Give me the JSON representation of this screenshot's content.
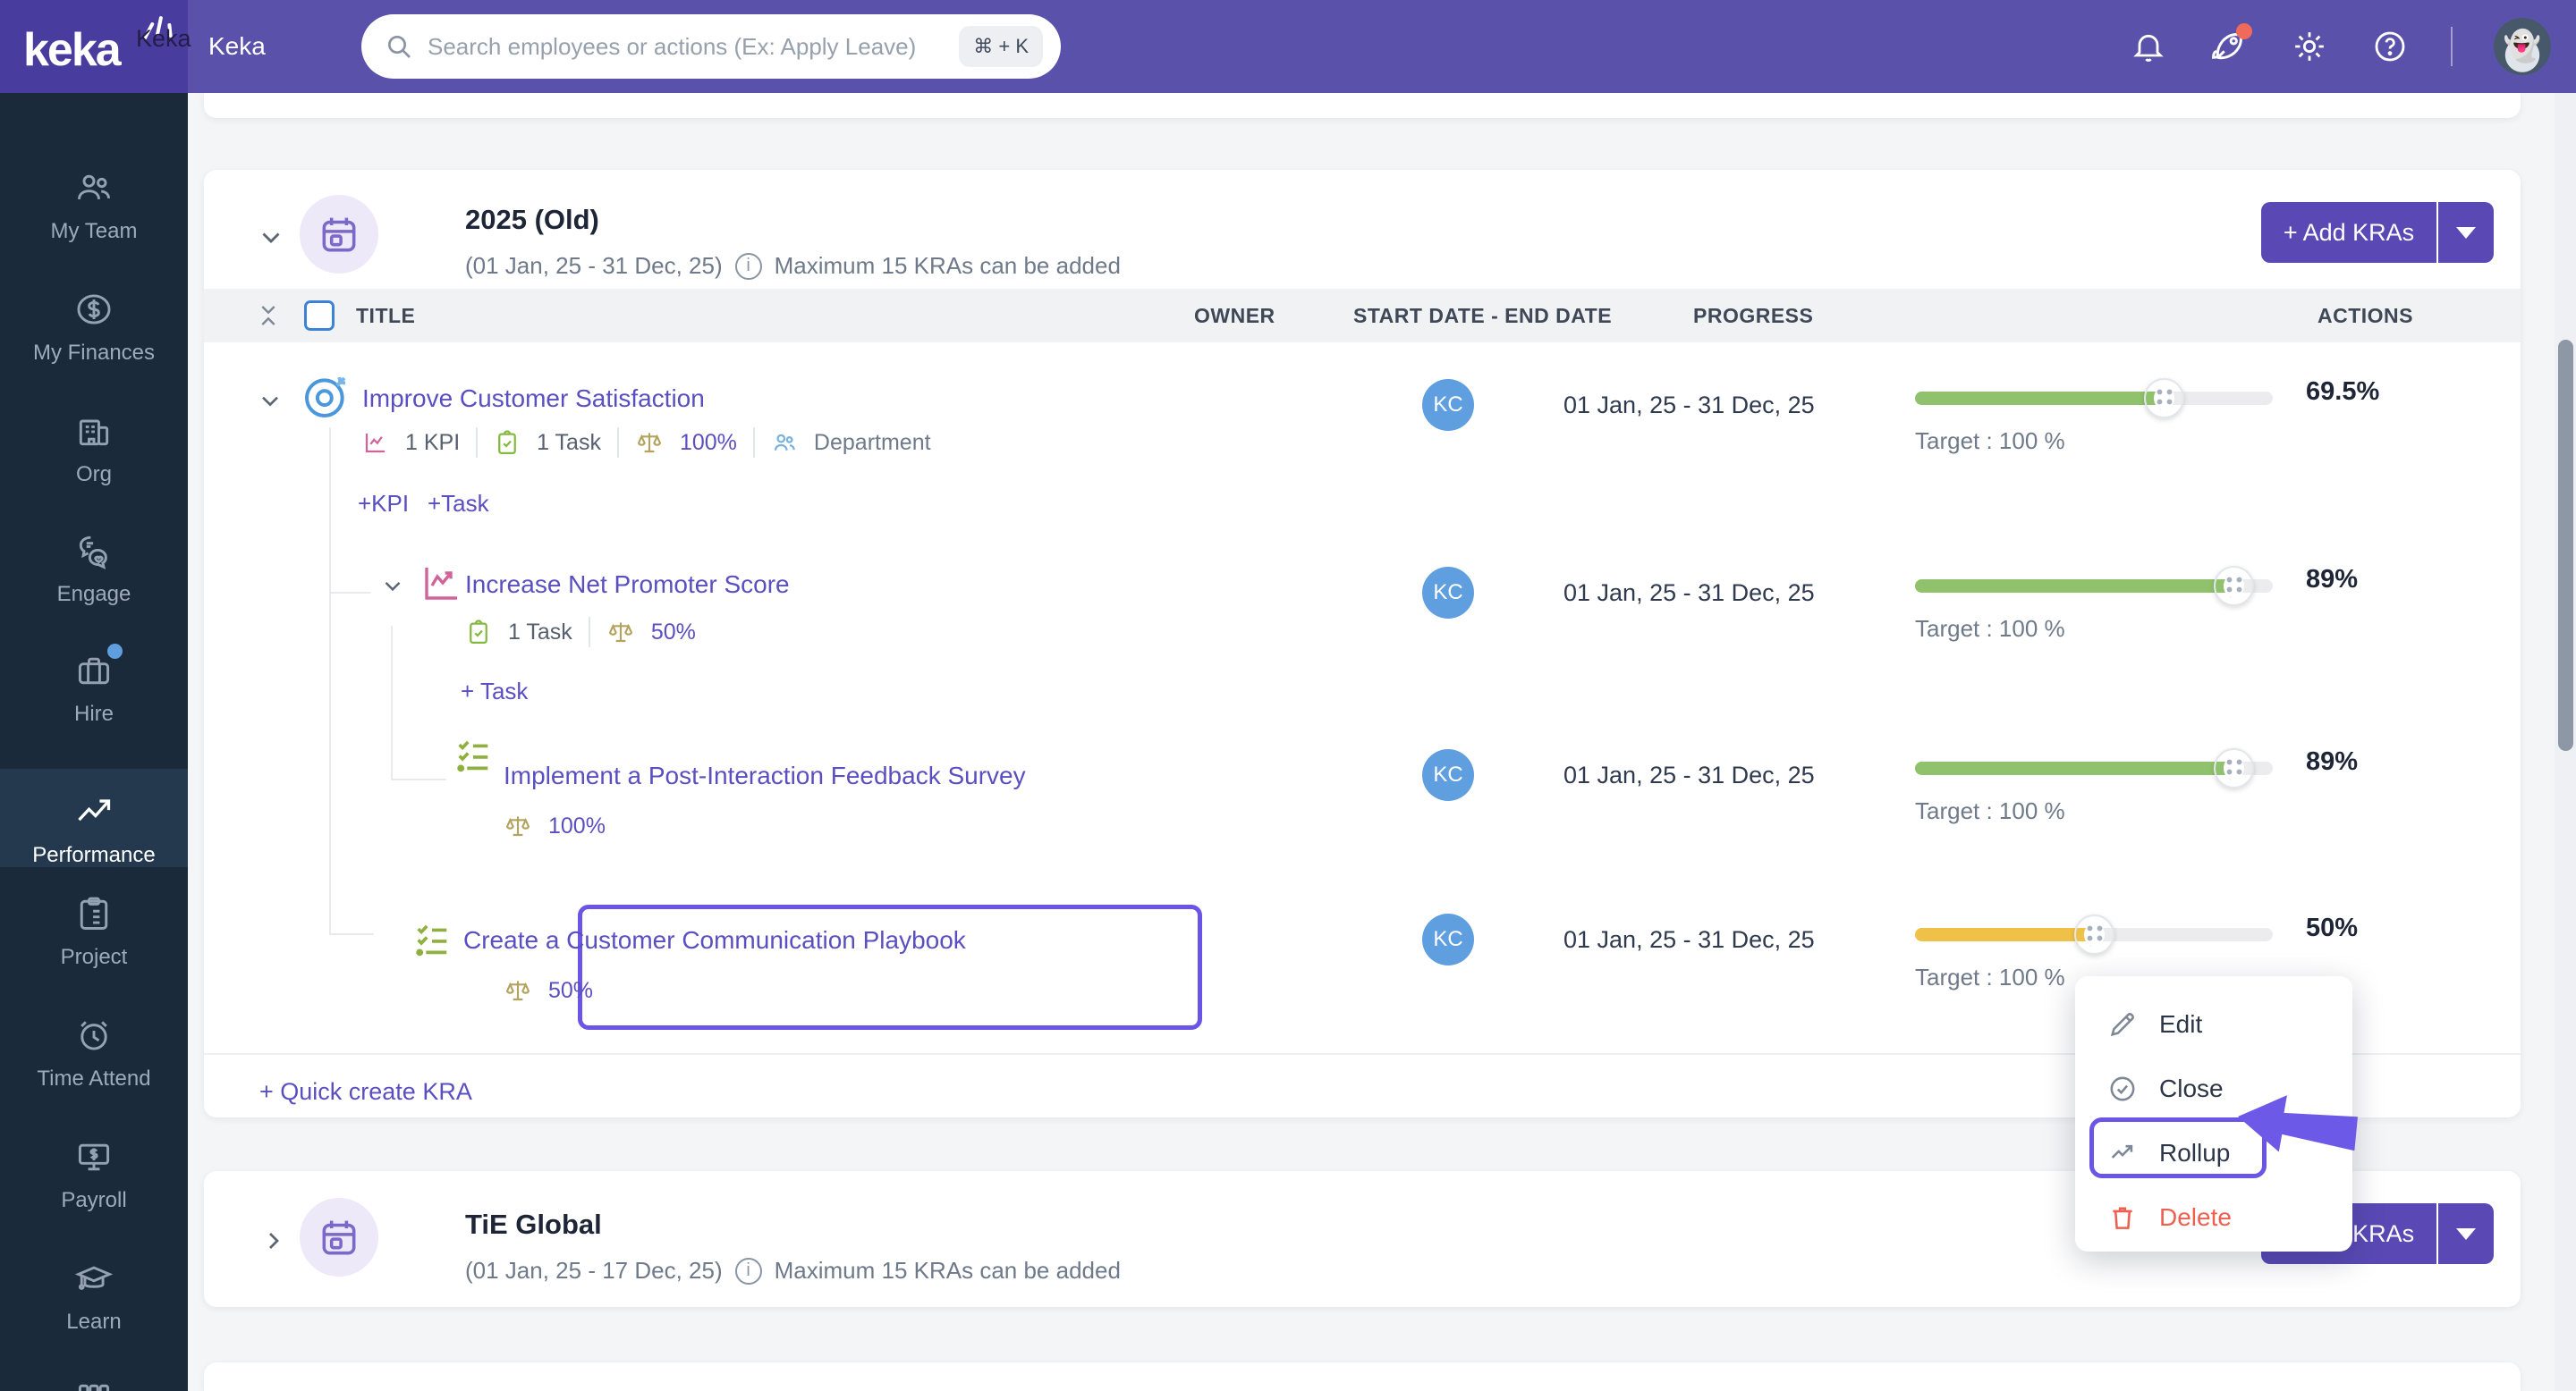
{
  "header": {
    "logo_text": "keka",
    "logo_overlay": "Keka",
    "app_name": "Keka",
    "search_placeholder": "Search employees or actions (Ex: Apply Leave)",
    "search_shortcut": "⌘ + K"
  },
  "sidebar": {
    "items": [
      {
        "label": "My Team",
        "icon": "team-icon",
        "active": false
      },
      {
        "label": "My Finances",
        "icon": "finances-icon",
        "active": false
      },
      {
        "label": "Org",
        "icon": "org-icon",
        "active": false
      },
      {
        "label": "Engage",
        "icon": "engage-icon",
        "active": false
      },
      {
        "label": "Hire",
        "icon": "hire-icon",
        "active": false,
        "badge": true
      },
      {
        "label": "Performance",
        "icon": "performance-icon",
        "active": true
      },
      {
        "label": "Project",
        "icon": "project-icon",
        "active": false
      },
      {
        "label": "Time Attend",
        "icon": "time-attend-icon",
        "active": false
      },
      {
        "label": "Payroll",
        "icon": "payroll-icon",
        "active": false
      },
      {
        "label": "Learn",
        "icon": "learn-icon",
        "active": false
      },
      {
        "label": "Apps",
        "icon": "apps-icon",
        "active": false
      }
    ]
  },
  "cycle": {
    "title": "2025 (Old)",
    "date_range": "(01 Jan, 25 - 31 Dec, 25)",
    "info_note": "Maximum 15 KRAs can be added",
    "add_kras_label": "+ Add KRAs",
    "quick_create_label": "+ Quick create KRA",
    "columns": {
      "title": "TITLE",
      "owner": "OWNER",
      "dates": "START DATE - END DATE",
      "progress": "PROGRESS",
      "actions": "ACTIONS"
    },
    "rows": [
      {
        "type": "kra",
        "title": "Improve Customer Satisfaction",
        "kpi_count": "1 KPI",
        "task_count": "1 Task",
        "weight": "100%",
        "scope": "Department",
        "add_kpi_label": "+KPI",
        "add_task_label": "+Task",
        "owner_initials": "KC",
        "dates": "01 Jan, 25 - 31 Dec, 25",
        "progress_pct": 69.5,
        "progress_label": "69.5%",
        "target": "Target : 100 %",
        "bar_color": "green"
      },
      {
        "type": "kpi",
        "title": "Increase Net Promoter Score",
        "task_count": "1 Task",
        "weight": "50%",
        "add_task_label": "+ Task",
        "owner_initials": "KC",
        "dates": "01 Jan, 25 - 31 Dec, 25",
        "progress_pct": 89,
        "progress_label": "89%",
        "target": "Target : 100 %",
        "bar_color": "green"
      },
      {
        "type": "task",
        "title": "Implement a Post-Interaction Feedback Survey",
        "weight": "100%",
        "owner_initials": "KC",
        "dates": "01 Jan, 25 - 31 Dec, 25",
        "progress_pct": 89,
        "progress_label": "89%",
        "target": "Target : 100 %",
        "bar_color": "green"
      },
      {
        "type": "task",
        "title": "Create a Customer Communication Playbook",
        "weight": "50%",
        "owner_initials": "KC",
        "dates": "01 Jan, 25 - 31 Dec, 25",
        "progress_pct": 50,
        "progress_label": "50%",
        "target": "Target : 100 %",
        "bar_color": "yellow",
        "highlighted": true
      }
    ]
  },
  "context_menu": {
    "items": [
      {
        "label": "Edit",
        "icon": "pencil-icon"
      },
      {
        "label": "Close",
        "icon": "circle-check-icon"
      },
      {
        "label": "Rollup",
        "icon": "trend-icon",
        "highlighted": true
      },
      {
        "label": "Delete",
        "icon": "trash-icon",
        "danger": true
      }
    ]
  },
  "tie": {
    "title": "TiE Global",
    "date_range": "(01 Jan, 25 - 17 Dec, 25)",
    "info_note": "Maximum 15 KRAs can be added",
    "add_kras_label": "+ Add KRAs"
  },
  "colors": {
    "header_purple": "#5a51ab",
    "logo_purple": "#483c9e",
    "button_purple": "#5a49b5",
    "link_purple": "#5a4fc0",
    "highlight_purple": "#6a55e6",
    "progress_green": "#90c16c",
    "progress_yellow": "#efc148",
    "avatar_blue": "#5f9fdf",
    "danger_red": "#ee5f50",
    "sidebar_navy": "#1b2a3b",
    "notification_red": "#ef6a5a"
  }
}
